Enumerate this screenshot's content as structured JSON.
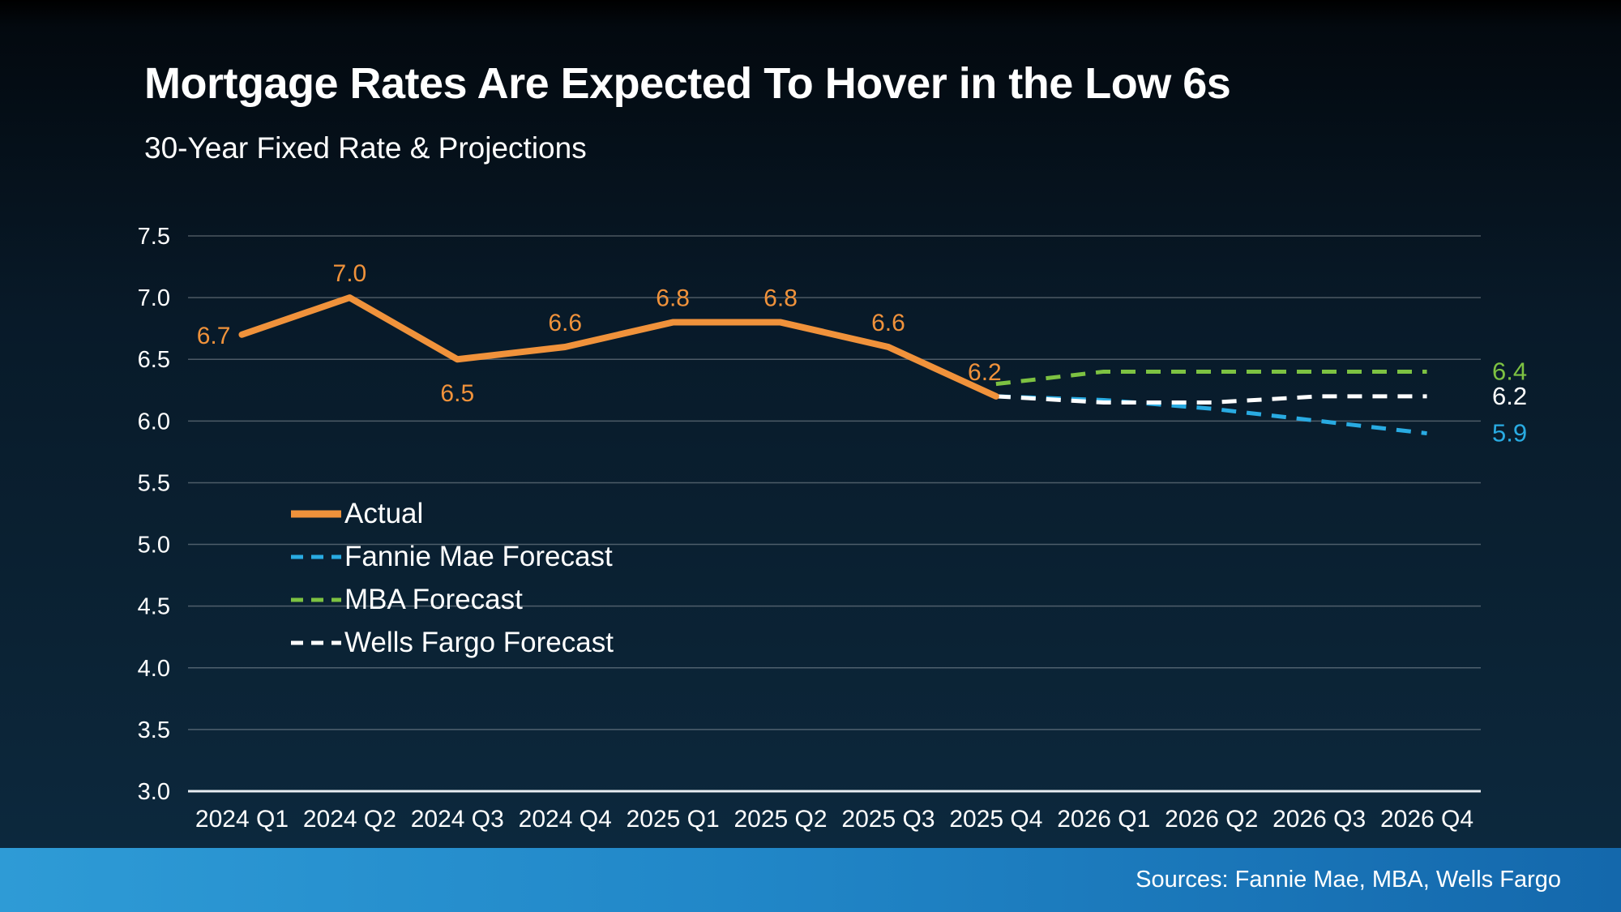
{
  "page": {
    "title": "Mortgage Rates Are Expected To Hover in the Low 6s",
    "subtitle": "30-Year Fixed Rate & Projections",
    "source_note": "Sources: Fannie Mae, MBA, Wells Fargo"
  },
  "theme": {
    "background_top": "#000000",
    "background_bottom": "#0D2A40",
    "footer_bar_left": "#2E9BD6",
    "footer_bar_right": "#1468AC",
    "text_color": "#FFFFFF",
    "gridline_color": "rgba(255,255,255,0.28)",
    "axis_color": "#E8EDF2"
  },
  "chart_data": {
    "type": "line",
    "title": "Mortgage Rates Are Expected To Hover in the Low 6s",
    "subtitle": "30-Year Fixed Rate & Projections",
    "categories": [
      "2024 Q1",
      "2024 Q2",
      "2024 Q3",
      "2024 Q4",
      "2025 Q1",
      "2025 Q2",
      "2025 Q3",
      "2025 Q4",
      "2026 Q1",
      "2026 Q2",
      "2026 Q3",
      "2026 Q4"
    ],
    "ylim": [
      3.0,
      7.5
    ],
    "ytick_step": 0.5,
    "yticks": [
      "7.5",
      "7.0",
      "6.5",
      "6.0",
      "5.5",
      "5.0",
      "4.5",
      "4.0",
      "3.5",
      "3.0"
    ],
    "grid": "horizontal",
    "legend_position": "inside-left",
    "series": [
      {
        "name": "Actual",
        "color": "#F0923B",
        "dash": "solid",
        "start_index": 0,
        "values": [
          6.7,
          7.0,
          6.5,
          6.6,
          6.8,
          6.8,
          6.6,
          6.2
        ],
        "point_labels": [
          {
            "index": 0,
            "text": "6.7",
            "placement": "left"
          },
          {
            "index": 1,
            "text": "7.0",
            "placement": "above"
          },
          {
            "index": 2,
            "text": "6.5",
            "placement": "below"
          },
          {
            "index": 3,
            "text": "6.6",
            "placement": "above"
          },
          {
            "index": 4,
            "text": "6.8",
            "placement": "above"
          },
          {
            "index": 5,
            "text": "6.8",
            "placement": "above"
          },
          {
            "index": 6,
            "text": "6.6",
            "placement": "above"
          },
          {
            "index": 7,
            "text": "6.2",
            "placement": "above",
            "dx": -14
          }
        ],
        "end_label": null
      },
      {
        "name": "Fannie Mae Forecast",
        "color": "#29ABE2",
        "dash": "dashed",
        "start_index": 7,
        "values": [
          6.2,
          6.17,
          6.1,
          6.0,
          5.9
        ],
        "point_labels": [],
        "end_label": "5.9"
      },
      {
        "name": "MBA Forecast",
        "color": "#7DC242",
        "dash": "dashed",
        "start_index": 7,
        "values": [
          6.3,
          6.4,
          6.4,
          6.4,
          6.4
        ],
        "point_labels": [],
        "end_label": "6.4"
      },
      {
        "name": "Wells Fargo Forecast",
        "color": "#FFFFFF",
        "dash": "dashed",
        "start_index": 7,
        "values": [
          6.2,
          6.15,
          6.15,
          6.2,
          6.2
        ],
        "point_labels": [],
        "end_label": "6.2"
      }
    ]
  }
}
